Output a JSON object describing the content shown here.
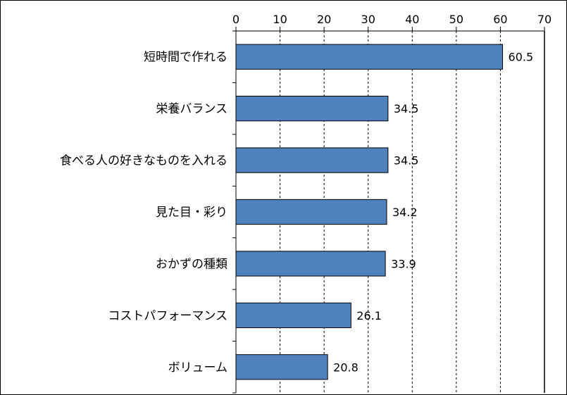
{
  "chart_data": {
    "type": "bar",
    "orientation": "horizontal",
    "categories": [
      "短時間で作れる",
      "栄養バランス",
      "食べる人の好きなものを入れる",
      "見た目・彩り",
      "おかずの種類",
      "コストパフォーマンス",
      "ボリューム"
    ],
    "values": [
      60.5,
      34.5,
      34.5,
      34.2,
      33.9,
      26.1,
      20.8
    ],
    "data_labels": [
      "60.5",
      "34.5",
      "34.5",
      "34.2",
      "33.9",
      "26.1",
      "20.8"
    ],
    "xlim": [
      0,
      70
    ],
    "ticks": [
      0,
      10,
      20,
      30,
      40,
      50,
      60,
      70
    ],
    "axis_position": "top",
    "grid": "vertical dashed",
    "legend": "none",
    "colors": {
      "bar_fill": "#4F81BD",
      "bar_stroke": "#000000",
      "grid": "#000000"
    }
  }
}
